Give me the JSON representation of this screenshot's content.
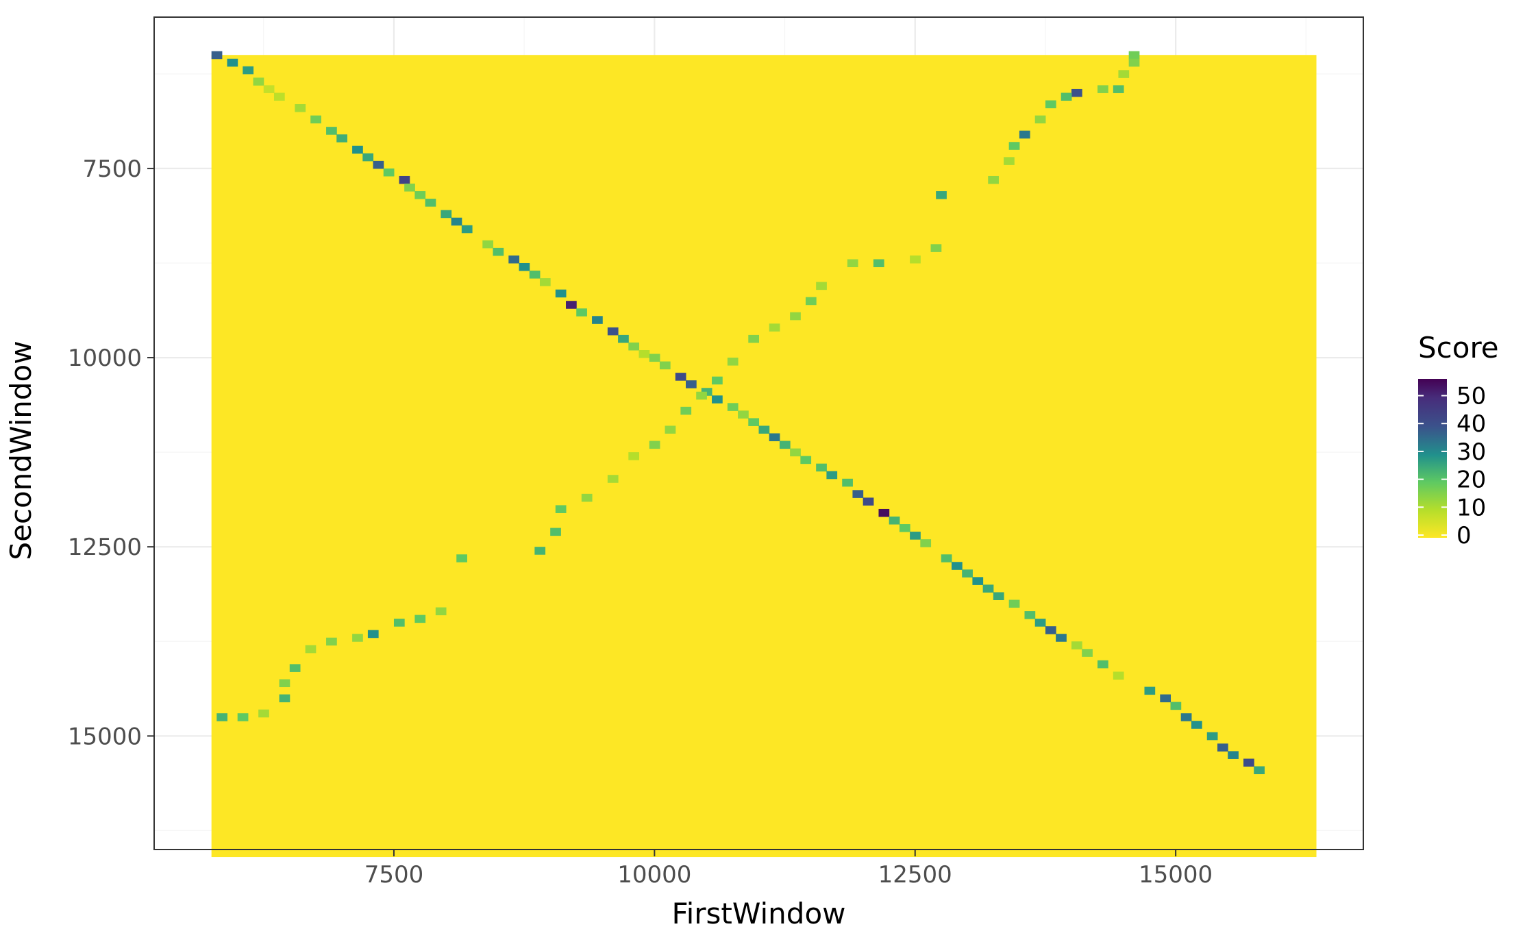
{
  "chart_data": {
    "type": "heatmap",
    "title": "",
    "xlabel": "FirstWindow",
    "ylabel": "SecondWindow",
    "xlim": [
      5200,
      16800
    ],
    "ylim": [
      16500,
      5500
    ],
    "x_ticks": [
      7500,
      10000,
      12500,
      15000
    ],
    "y_ticks": [
      7500,
      10000,
      12500,
      15000
    ],
    "x_tick_labels": [
      "7500",
      "10000",
      "12500",
      "15000"
    ],
    "y_tick_labels": [
      "7500",
      "10000",
      "12500",
      "15000"
    ],
    "grid": true,
    "fill_extent": {
      "x": [
        5750,
        16350
      ],
      "y": [
        6000,
        16600
      ]
    },
    "background_value": 0,
    "legend": {
      "title": "Score",
      "placement": "right",
      "min": 0,
      "max": 57,
      "ticks": [
        0,
        10,
        20,
        30,
        40,
        50
      ],
      "tick_labels": [
        "0",
        "10",
        "20",
        "30",
        "40",
        "50"
      ]
    },
    "colors": {
      "panel_border": "#333333",
      "grid_major": "#ebebeb",
      "grid_minor": "#f5f5f5",
      "viridis": [
        "#fde725",
        "#5ec962",
        "#21918c",
        "#3b528b",
        "#440154"
      ]
    },
    "diagonal_cells": [
      [
        5800,
        6000,
        38
      ],
      [
        5950,
        6100,
        30
      ],
      [
        6100,
        6200,
        28
      ],
      [
        6200,
        6350,
        14
      ],
      [
        6300,
        6450,
        8
      ],
      [
        6400,
        6550,
        9
      ],
      [
        6600,
        6700,
        12
      ],
      [
        6750,
        6850,
        18
      ],
      [
        6900,
        7000,
        22
      ],
      [
        7000,
        7100,
        25
      ],
      [
        7150,
        7250,
        30
      ],
      [
        7250,
        7350,
        26
      ],
      [
        7350,
        7450,
        38
      ],
      [
        7450,
        7550,
        20
      ],
      [
        7600,
        7650,
        44
      ],
      [
        7650,
        7750,
        16
      ],
      [
        7750,
        7850,
        18
      ],
      [
        7850,
        7950,
        22
      ],
      [
        8000,
        8100,
        26
      ],
      [
        8100,
        8200,
        32
      ],
      [
        8200,
        8300,
        28
      ],
      [
        8400,
        8500,
        14
      ],
      [
        8500,
        8600,
        22
      ],
      [
        8650,
        8700,
        36
      ],
      [
        8750,
        8800,
        30
      ],
      [
        8850,
        8900,
        22
      ],
      [
        8950,
        9000,
        12
      ],
      [
        9100,
        9150,
        30
      ],
      [
        9200,
        9300,
        52
      ],
      [
        9300,
        9400,
        20
      ],
      [
        9450,
        9500,
        32
      ],
      [
        9600,
        9650,
        40
      ],
      [
        9700,
        9750,
        26
      ],
      [
        9800,
        9850,
        16
      ],
      [
        9900,
        9950,
        10
      ],
      [
        10000,
        10000,
        16
      ],
      [
        10100,
        10100,
        16
      ],
      [
        10250,
        10250,
        42
      ],
      [
        10350,
        10350,
        38
      ],
      [
        10500,
        10450,
        24
      ],
      [
        10600,
        10550,
        30
      ],
      [
        10750,
        10650,
        18
      ],
      [
        10850,
        10750,
        14
      ],
      [
        10950,
        10850,
        20
      ],
      [
        11050,
        10950,
        26
      ],
      [
        11150,
        11050,
        34
      ],
      [
        11250,
        11150,
        24
      ],
      [
        11350,
        11250,
        14
      ],
      [
        11450,
        11350,
        20
      ],
      [
        11600,
        11450,
        22
      ],
      [
        11700,
        11550,
        28
      ],
      [
        11850,
        11650,
        22
      ],
      [
        11950,
        11800,
        38
      ],
      [
        12050,
        11900,
        42
      ],
      [
        12200,
        12050,
        55
      ],
      [
        12300,
        12150,
        24
      ],
      [
        12400,
        12250,
        20
      ],
      [
        12500,
        12350,
        28
      ],
      [
        12600,
        12450,
        16
      ],
      [
        12800,
        12650,
        22
      ],
      [
        12900,
        12750,
        30
      ],
      [
        13000,
        12850,
        24
      ],
      [
        13100,
        12950,
        30
      ],
      [
        13200,
        13050,
        26
      ],
      [
        13300,
        13150,
        26
      ],
      [
        13450,
        13250,
        18
      ],
      [
        13600,
        13400,
        22
      ],
      [
        13700,
        13500,
        28
      ],
      [
        13800,
        13600,
        38
      ],
      [
        13900,
        13700,
        34
      ],
      [
        14050,
        13800,
        12
      ],
      [
        14150,
        13900,
        16
      ],
      [
        14300,
        14050,
        22
      ],
      [
        14450,
        14200,
        10
      ],
      [
        14750,
        14400,
        28
      ],
      [
        14900,
        14500,
        36
      ],
      [
        15000,
        14600,
        22
      ],
      [
        15100,
        14750,
        34
      ],
      [
        15200,
        14850,
        30
      ],
      [
        15350,
        15000,
        28
      ],
      [
        15450,
        15150,
        38
      ],
      [
        15550,
        15250,
        32
      ],
      [
        15700,
        15350,
        42
      ],
      [
        15800,
        15450,
        26
      ]
    ],
    "antidiagonal_cells": [
      [
        14600,
        6000,
        18
      ],
      [
        14600,
        6100,
        16
      ],
      [
        14500,
        6250,
        12
      ],
      [
        14450,
        6450,
        22
      ],
      [
        14300,
        6450,
        16
      ],
      [
        14050,
        6500,
        40
      ],
      [
        13950,
        6550,
        22
      ],
      [
        13800,
        6650,
        20
      ],
      [
        13700,
        6850,
        14
      ],
      [
        13550,
        7050,
        34
      ],
      [
        13450,
        7200,
        20
      ],
      [
        13400,
        7400,
        12
      ],
      [
        13250,
        7650,
        14
      ],
      [
        12750,
        7850,
        26
      ],
      [
        12700,
        8550,
        16
      ],
      [
        12500,
        8700,
        10
      ],
      [
        12150,
        8750,
        22
      ],
      [
        11900,
        8750,
        14
      ],
      [
        11600,
        9050,
        12
      ],
      [
        11500,
        9250,
        18
      ],
      [
        11350,
        9450,
        14
      ],
      [
        11150,
        9600,
        12
      ],
      [
        10950,
        9750,
        16
      ],
      [
        10750,
        10050,
        14
      ],
      [
        10600,
        10300,
        20
      ],
      [
        10450,
        10500,
        14
      ],
      [
        10300,
        10700,
        18
      ],
      [
        10150,
        10950,
        14
      ],
      [
        10000,
        11150,
        16
      ],
      [
        9800,
        11300,
        10
      ],
      [
        9600,
        11600,
        12
      ],
      [
        9350,
        11850,
        14
      ],
      [
        9100,
        12000,
        20
      ],
      [
        9050,
        12300,
        22
      ],
      [
        8900,
        12550,
        24
      ],
      [
        8150,
        12650,
        20
      ],
      [
        7950,
        13350,
        14
      ],
      [
        7750,
        13450,
        20
      ],
      [
        7550,
        13500,
        22
      ],
      [
        7300,
        13650,
        30
      ],
      [
        7150,
        13700,
        14
      ],
      [
        6900,
        13750,
        16
      ],
      [
        6700,
        13850,
        12
      ],
      [
        6550,
        14100,
        22
      ],
      [
        6450,
        14300,
        16
      ],
      [
        6450,
        14500,
        24
      ],
      [
        6250,
        14700,
        12
      ],
      [
        6050,
        14750,
        20
      ],
      [
        5850,
        14750,
        24
      ]
    ]
  }
}
